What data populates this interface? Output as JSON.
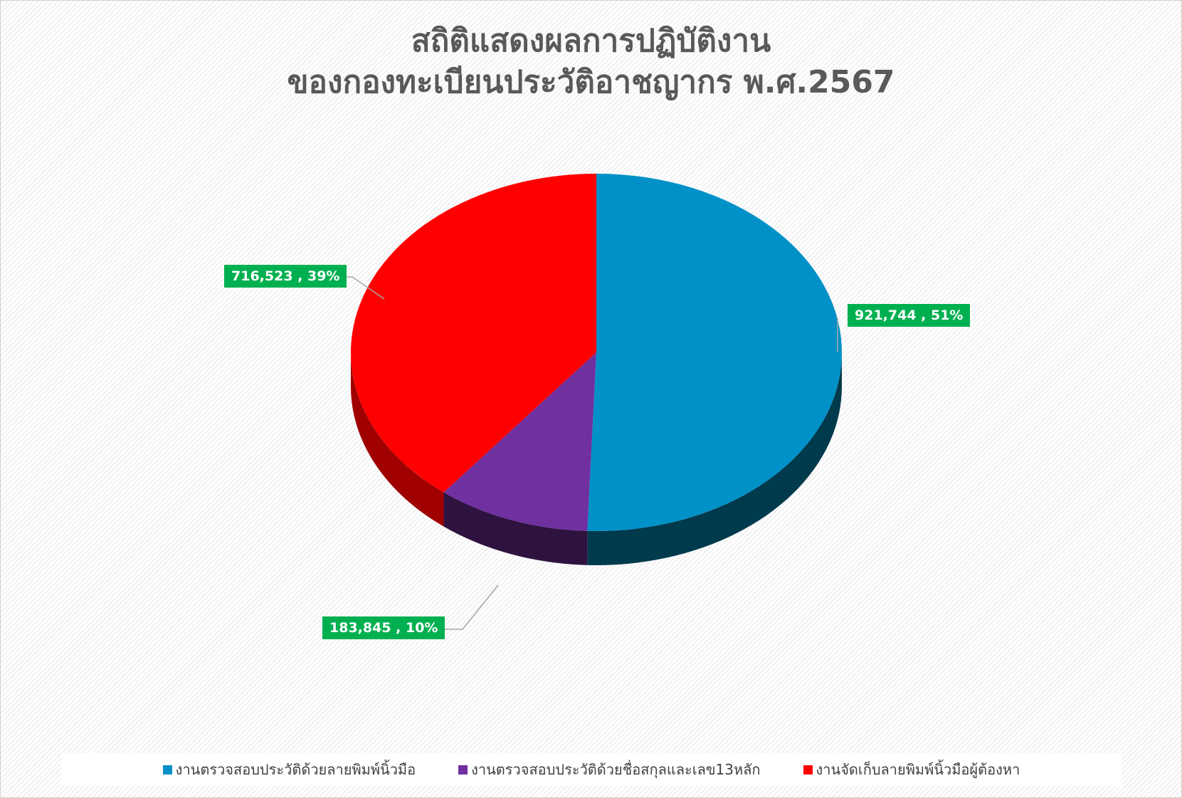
{
  "chart_data": {
    "type": "pie",
    "style": "3d",
    "title": [
      "สถิติแสดงผลการปฏิบัติงาน",
      "ของกองทะเบียนประวัติอาชญากร พ.ศ.2567"
    ],
    "slices": [
      {
        "name": "งานตรวจสอบประวัติด้วยลายพิมพ์นิ้วมือ",
        "value": 921744,
        "percent": 51,
        "label": "921,744 , 51%",
        "color": "#0091c8",
        "side_color": "#003a4d"
      },
      {
        "name": "งานตรวจสอบประวัติด้วยชื่อสกุลและเลข13หลัก",
        "value": 183845,
        "percent": 10,
        "label": "183,845 , 10%",
        "color": "#7030a0",
        "side_color": "#2e123f"
      },
      {
        "name": "งานจัดเก็บลายพิมพ์นิ้วมือผู้ต้องหา",
        "value": 716523,
        "percent": 39,
        "label": "716,523 , 39%",
        "color": "#ff0000",
        "side_color": "#a00000"
      }
    ],
    "label_color": "#00b050",
    "legend_position": "bottom"
  }
}
